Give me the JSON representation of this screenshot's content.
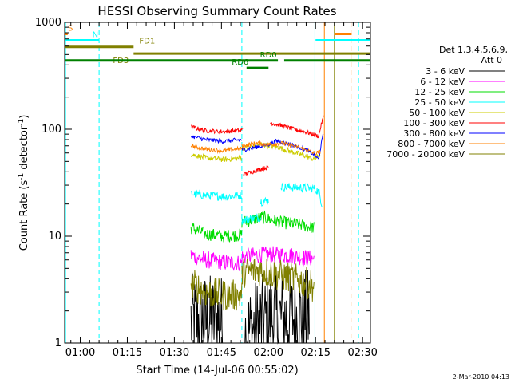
{
  "chart_data": {
    "type": "line",
    "title": "HESSI Observing Summary Count Rates",
    "ylabel_main": "Count Rate (s",
    "ylabel_sup1": "-1",
    "ylabel_mid": " detector",
    "ylabel_sup2": "-1",
    "ylabel_end": ")",
    "xlabel": "Start Time (14-Jul-06 00:55:02)",
    "footer": "2-Mar-2010 04:13",
    "yscale": "log",
    "ylim": [
      1,
      1000
    ],
    "xlim_minutes": [
      55.03,
      152.5
    ],
    "x_ticks": [
      {
        "label": "01:00",
        "minutes": 60
      },
      {
        "label": "01:15",
        "minutes": 75
      },
      {
        "label": "01:30",
        "minutes": 90
      },
      {
        "label": "01:45",
        "minutes": 105
      },
      {
        "label": "02:00",
        "minutes": 120
      },
      {
        "label": "02:15",
        "minutes": 135
      },
      {
        "label": "02:30",
        "minutes": 150
      }
    ],
    "y_ticks": [
      {
        "label": "1",
        "value": 1
      },
      {
        "label": "10",
        "value": 10
      },
      {
        "label": "100",
        "value": 100
      },
      {
        "label": "1000",
        "value": 1000
      }
    ],
    "legend_header_1": "Det 1,3,4,5,6,9,",
    "legend_header_2": "Att 0",
    "series": [
      {
        "name": "3 - 6 keV",
        "color": "#000000",
        "segments": [
          [
            [
              95.3,
              1.6
            ],
            [
              105.5,
              1.6
            ]
          ],
          [
            [
              112.5,
              1.2
            ],
            [
              120,
              1.7
            ],
            [
              126,
              1.7
            ],
            [
              133,
              1.8
            ]
          ]
        ],
        "noise": 0.45
      },
      {
        "name": "6 - 12 keV",
        "color": "#ff00ff",
        "segments": [
          [
            [
              95.3,
              6.6
            ],
            [
              100,
              6.0
            ],
            [
              105.5,
              5.7
            ],
            [
              111.5,
              5.6
            ]
          ],
          [
            [
              111.5,
              6.4
            ],
            [
              118,
              6.7
            ],
            [
              126,
              6.7
            ],
            [
              133,
              6.2
            ],
            [
              134.5,
              6.2
            ]
          ]
        ],
        "noise": 0.08
      },
      {
        "name": "12 - 25 keV",
        "color": "#00dd00",
        "segments": [
          [
            [
              95.3,
              12
            ],
            [
              100,
              10.5
            ],
            [
              105.5,
              10
            ],
            [
              111.5,
              10.3
            ]
          ],
          [
            [
              111.5,
              13.5
            ],
            [
              118,
              15
            ],
            [
              124,
              13.5
            ],
            [
              130,
              12.8
            ],
            [
              134.5,
              12
            ]
          ]
        ],
        "noise": 0.06
      },
      {
        "name": "25 - 50 keV",
        "color": "#00ffff",
        "segments": [
          [
            [
              95.3,
              25
            ],
            [
              100,
              24
            ],
            [
              106,
              23.5
            ],
            [
              111.5,
              24
            ]
          ],
          [
            [
              111.5,
              14
            ],
            [
              114,
              14.5
            ],
            [
              117.5,
              15
            ]
          ],
          [
            [
              117.5,
              21
            ],
            [
              120,
              21.5
            ]
          ],
          [
            [
              124,
              29
            ],
            [
              130,
              28.5
            ],
            [
              134.5,
              28
            ],
            [
              136,
              26
            ],
            [
              137,
              20
            ]
          ]
        ],
        "noise": 0.04
      },
      {
        "name": "50 - 100 keV",
        "color": "#cccc00",
        "segments": [
          [
            [
              95.3,
              58
            ],
            [
              100,
              54
            ],
            [
              105.5,
              52
            ],
            [
              111.5,
              54
            ]
          ],
          [
            [
              111.5,
              66
            ],
            [
              118,
              72
            ],
            [
              123,
              68
            ],
            [
              127,
              62
            ],
            [
              132,
              56
            ],
            [
              134.5,
              52
            ],
            [
              136.5,
              58
            ]
          ]
        ],
        "noise": 0.025
      },
      {
        "name": "100 - 300 keV",
        "color": "#ff0000",
        "segments": [
          [
            [
              95.3,
              105
            ],
            [
              100,
              97
            ],
            [
              106,
              95
            ],
            [
              111.5,
              98
            ],
            [
              112,
              105
            ]
          ],
          [
            [
              112,
              38
            ],
            [
              115,
              40
            ],
            [
              118,
              43
            ],
            [
              120,
              44
            ]
          ],
          [
            [
              120.5,
              115
            ],
            [
              124,
              108
            ],
            [
              128,
              100
            ],
            [
              133,
              92
            ],
            [
              136,
              86
            ],
            [
              137.5,
              130
            ]
          ]
        ],
        "noise": 0.02
      },
      {
        "name": "300 - 800 keV",
        "color": "#0000ff",
        "segments": [
          [
            [
              95.3,
              86
            ],
            [
              100,
              80
            ],
            [
              105.5,
              77
            ],
            [
              111.5,
              80
            ]
          ],
          [
            [
              111.5,
              64
            ],
            [
              116,
              68
            ],
            [
              120,
              72
            ],
            [
              122.5,
              78
            ],
            [
              127,
              72
            ],
            [
              131,
              66
            ],
            [
              134.5,
              58
            ],
            [
              136,
              52
            ],
            [
              137.5,
              90
            ]
          ]
        ],
        "noise": 0.02
      },
      {
        "name": "800 - 7000 keV",
        "color": "#ff8000",
        "segments": [
          [
            [
              95.3,
              70
            ],
            [
              100,
              65
            ],
            [
              105.5,
              63
            ],
            [
              111.5,
              66
            ]
          ],
          [
            [
              111.5,
              70
            ],
            [
              116,
              74
            ],
            [
              121,
              72
            ],
            [
              124,
              74
            ],
            [
              128,
              70
            ],
            [
              132,
              64
            ],
            [
              135,
              59
            ],
            [
              136.5,
              62
            ]
          ]
        ],
        "noise": 0.02
      },
      {
        "name": "7000 - 20000 keV",
        "color": "#808000",
        "segments": [
          [
            [
              95.3,
              3.6
            ],
            [
              100,
              3.0
            ],
            [
              105.5,
              2.8
            ],
            [
              111.5,
              2.8
            ]
          ],
          [
            [
              111.5,
              4.6
            ],
            [
              117,
              4.8
            ],
            [
              122,
              4.4
            ],
            [
              128,
              4.0
            ],
            [
              132,
              3.7
            ],
            [
              134.5,
              3.4
            ]
          ]
        ],
        "noise": 0.15
      }
    ],
    "flags": [
      {
        "label": "S",
        "color": "#ff8000",
        "x_start": 55.03,
        "x_end": 56,
        "y": 780
      },
      {
        "label": "",
        "color": "#ff8000",
        "x_start": 141,
        "x_end": 146.5,
        "y": 780
      },
      {
        "label": "N",
        "color": "#00ffff",
        "x_start": 55.03,
        "x_end": 66,
        "y": 680
      },
      {
        "label": "",
        "color": "#00ffff",
        "x_start": 135,
        "x_end": 152.5,
        "y": 680
      },
      {
        "label": "FD1",
        "color": "#808000",
        "x_start": 55.03,
        "x_end": 77,
        "y": 590
      },
      {
        "label": "FD3",
        "color": "#808000",
        "x_start": 77,
        "x_end": 152.5,
        "y": 510
      },
      {
        "label": "RD0",
        "color": "#008000",
        "x_start": 55.03,
        "x_end": 123,
        "y": 440
      },
      {
        "label": "",
        "color": "#008000",
        "x_start": 125,
        "x_end": 152.5,
        "y": 440
      },
      {
        "label": "RD6",
        "color": "#008000",
        "x_start": 113,
        "x_end": 120,
        "y": 375
      }
    ],
    "vlines": [
      {
        "minutes": 55.3,
        "color": "#00ffff",
        "dashed": false
      },
      {
        "minutes": 66,
        "color": "#00ffff",
        "dashed": true
      },
      {
        "minutes": 111.5,
        "color": "#00ffff",
        "dashed": true
      },
      {
        "minutes": 134.8,
        "color": "#00ffff",
        "dashed": false
      },
      {
        "minutes": 137.8,
        "color": "#ff8000",
        "dashed": false
      },
      {
        "minutes": 141,
        "color": "#808000",
        "dashed": false
      },
      {
        "minutes": 146.3,
        "color": "#ff8000",
        "dashed": true
      },
      {
        "minutes": 148.7,
        "color": "#00ffff",
        "dashed": true
      }
    ]
  }
}
